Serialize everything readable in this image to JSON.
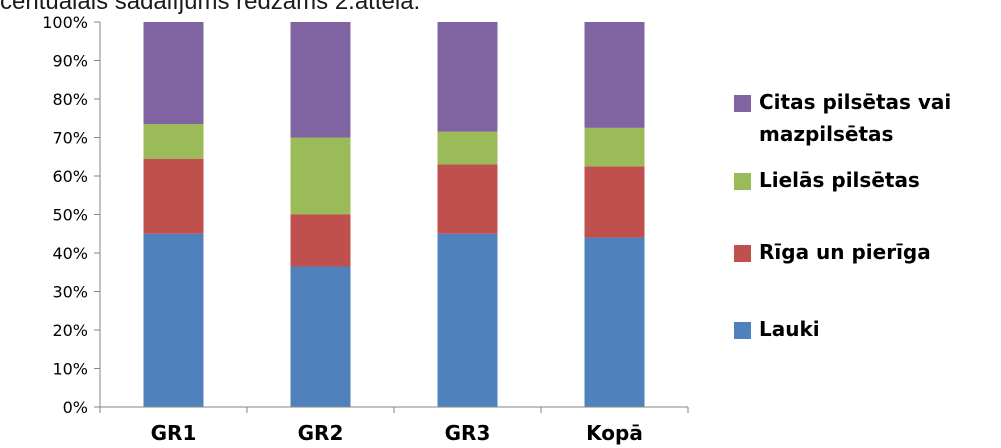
{
  "page": {
    "caption_fragment": "centuālais sadalījums redzams 2.attēlā."
  },
  "chart_data": {
    "type": "bar",
    "stacked": true,
    "percent": true,
    "categories": [
      "GR1",
      "GR2",
      "GR3",
      "Kopā"
    ],
    "series": [
      {
        "name": "Lauki",
        "color": "#4F81BD",
        "values": [
          45,
          36.5,
          45,
          44
        ]
      },
      {
        "name": "Rīga un pierīga",
        "color": "#C0504D",
        "values": [
          19.5,
          13.5,
          18,
          18.5
        ]
      },
      {
        "name": "Lielās pilsētas",
        "color": "#9BBB59",
        "values": [
          9,
          20,
          8.5,
          10
        ]
      },
      {
        "name": "Citas pilsētas vai mazpilsētas",
        "color": "#8064A2",
        "values": [
          26.5,
          30,
          28.5,
          27.5
        ]
      }
    ],
    "ylim": [
      0,
      100
    ],
    "yticks": [
      "0%",
      "10%",
      "20%",
      "30%",
      "40%",
      "50%",
      "60%",
      "70%",
      "80%",
      "90%",
      "100%"
    ],
    "legend_position": "right",
    "legend_order": [
      "Citas pilsētas vai mazpilsētas",
      "Lielās pilsētas",
      "Rīga un pierīga",
      "Lauki"
    ],
    "grid": false
  }
}
